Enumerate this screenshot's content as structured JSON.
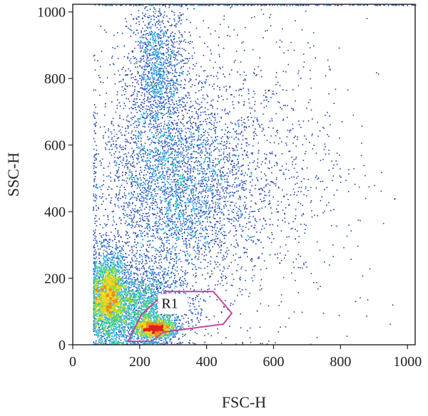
{
  "chart_data": {
    "type": "scatter",
    "subtype": "flow-cytometry-density-dot-plot",
    "title": "",
    "xlabel": "FSC-H",
    "ylabel": "SSC-H",
    "xlim": [
      0,
      1023
    ],
    "ylim": [
      0,
      1023
    ],
    "xticks": [
      0,
      200,
      400,
      600,
      800,
      1000
    ],
    "yticks": [
      0,
      200,
      400,
      600,
      800,
      1000
    ],
    "grid": false,
    "density_colors": [
      "#1f3fa8",
      "#2f6fd0",
      "#29b3e0",
      "#44c98f",
      "#a7d62a",
      "#f2d21c",
      "#f08a1b",
      "#e01f1f"
    ],
    "populations": [
      {
        "description": "upper column",
        "x_center": 250,
        "y_center": 820,
        "x_sd": 45,
        "y_sd": 110,
        "weight": 0.1
      },
      {
        "description": "mid cloud",
        "x_center": 300,
        "y_center": 460,
        "x_sd": 110,
        "y_sd": 140,
        "weight": 0.26
      },
      {
        "description": "broad scatter",
        "x_center": 430,
        "y_center": 520,
        "x_sd": 190,
        "y_sd": 220,
        "weight": 0.14
      },
      {
        "description": "low FSC green cluster",
        "x_center": 105,
        "y_center": 150,
        "x_sd": 28,
        "y_sd": 65,
        "weight": 0.22
      },
      {
        "description": "hot spot (R1)",
        "x_center": 245,
        "y_center": 50,
        "x_sd": 30,
        "y_sd": 14,
        "weight": 0.1
      },
      {
        "description": "low band",
        "x_center": 200,
        "y_center": 110,
        "x_sd": 70,
        "y_sd": 60,
        "weight": 0.18
      }
    ],
    "gates": [
      {
        "name": "R1",
        "color": "#c0479a",
        "polygon": [
          [
            165,
            10
          ],
          [
            205,
            90
          ],
          [
            280,
            160
          ],
          [
            420,
            160
          ],
          [
            475,
            95
          ],
          [
            450,
            62
          ],
          [
            270,
            38
          ],
          [
            235,
            10
          ]
        ]
      }
    ]
  }
}
